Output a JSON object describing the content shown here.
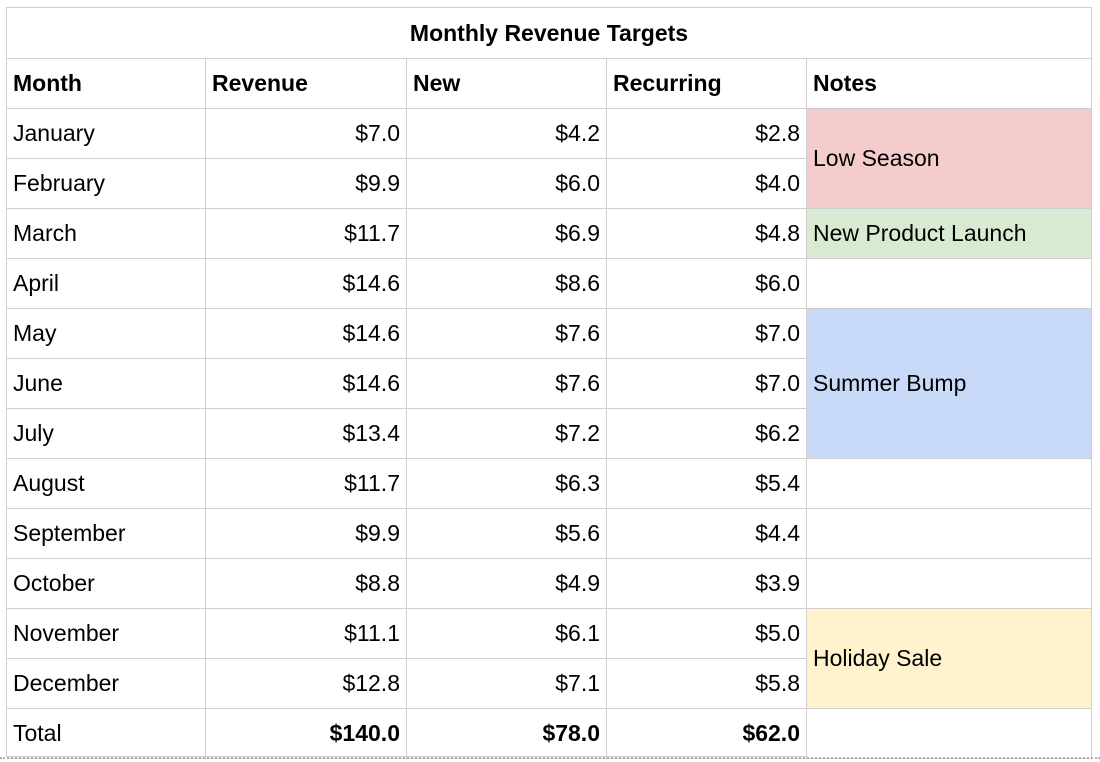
{
  "table": {
    "title": "Monthly Revenue Targets",
    "headers": [
      "Month",
      "Revenue",
      "New",
      "Recurring",
      "Notes"
    ],
    "rows": [
      {
        "month": "January",
        "revenue": "$7.0",
        "new": "$4.2",
        "recurring": "$2.8"
      },
      {
        "month": "February",
        "revenue": "$9.9",
        "new": "$6.0",
        "recurring": "$4.0"
      },
      {
        "month": "March",
        "revenue": "$11.7",
        "new": "$6.9",
        "recurring": "$4.8"
      },
      {
        "month": "April",
        "revenue": "$14.6",
        "new": "$8.6",
        "recurring": "$6.0"
      },
      {
        "month": "May",
        "revenue": "$14.6",
        "new": "$7.6",
        "recurring": "$7.0"
      },
      {
        "month": "June",
        "revenue": "$14.6",
        "new": "$7.6",
        "recurring": "$7.0"
      },
      {
        "month": "July",
        "revenue": "$13.4",
        "new": "$7.2",
        "recurring": "$6.2"
      },
      {
        "month": "August",
        "revenue": "$11.7",
        "new": "$6.3",
        "recurring": "$5.4"
      },
      {
        "month": "September",
        "revenue": "$9.9",
        "new": "$5.6",
        "recurring": "$4.4"
      },
      {
        "month": "October",
        "revenue": "$8.8",
        "new": "$4.9",
        "recurring": "$3.9"
      },
      {
        "month": "November",
        "revenue": "$11.1",
        "new": "$6.1",
        "recurring": "$5.0"
      },
      {
        "month": "December",
        "revenue": "$12.8",
        "new": "$7.1",
        "recurring": "$5.8"
      }
    ],
    "total": {
      "label": "Total",
      "revenue": "$140.0",
      "new": "$78.0",
      "recurring": "$62.0"
    },
    "notes": [
      {
        "text": "Low Season",
        "start_row": 0,
        "span": 2,
        "color": "#f4cccc"
      },
      {
        "text": "New Product Launch",
        "start_row": 2,
        "span": 1,
        "color": "#d9ead3"
      },
      {
        "text": "",
        "start_row": 3,
        "span": 1,
        "color": "#ffffff"
      },
      {
        "text": "Summer Bump",
        "start_row": 4,
        "span": 3,
        "color": "#c9daf8"
      },
      {
        "text": "",
        "start_row": 7,
        "span": 1,
        "color": "#ffffff"
      },
      {
        "text": "",
        "start_row": 8,
        "span": 1,
        "color": "#ffffff"
      },
      {
        "text": "",
        "start_row": 9,
        "span": 1,
        "color": "#ffffff"
      },
      {
        "text": "Holiday Sale",
        "start_row": 10,
        "span": 2,
        "color": "#fff2cc"
      },
      {
        "text": "",
        "start_row": 12,
        "span": 1,
        "color": "#ffffff"
      }
    ]
  }
}
